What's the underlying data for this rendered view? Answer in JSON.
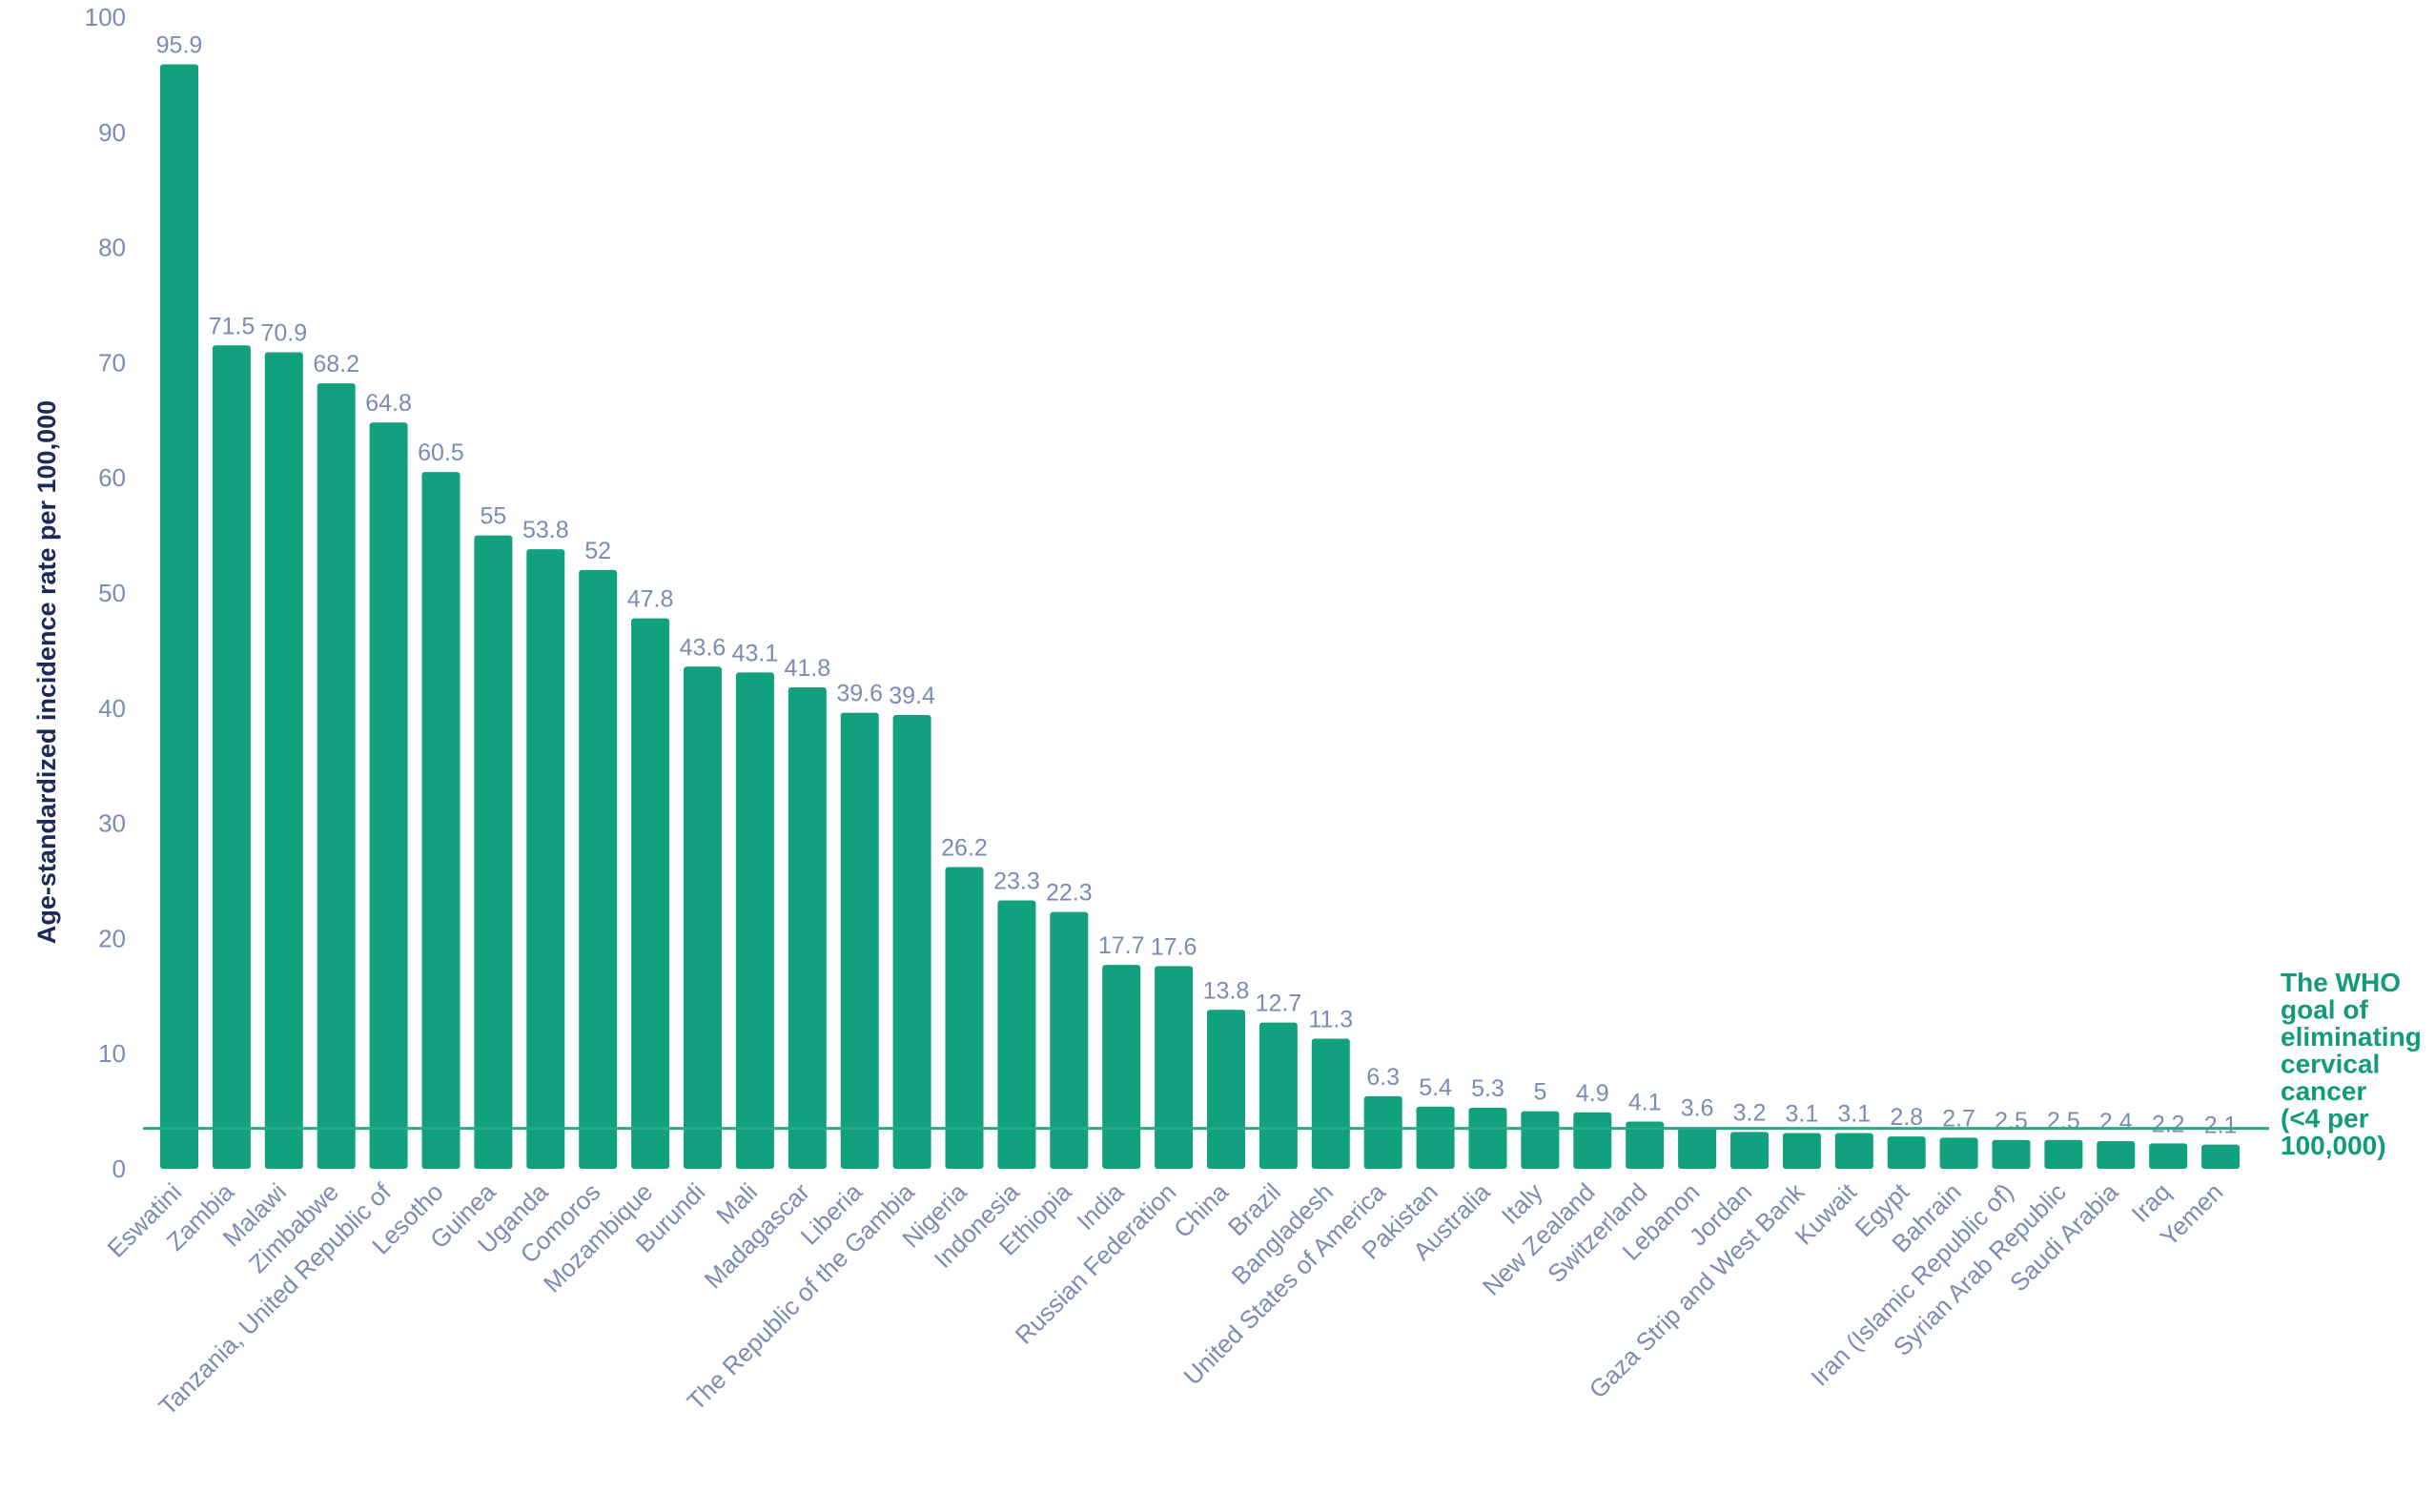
{
  "chart_data": {
    "type": "bar",
    "title": "",
    "xlabel": "",
    "ylabel": "Age-standardized incidence rate per 100,000",
    "ylim": [
      0,
      100
    ],
    "yticks": [
      0,
      10,
      20,
      30,
      40,
      50,
      60,
      70,
      80,
      90,
      100
    ],
    "grid": false,
    "bar_color": "#12a17e",
    "goal_line_color": "#2aaa8a",
    "categories": [
      "Eswatini",
      "Zambia",
      "Malawi",
      "Zimbabwe",
      "Tanzania, United Republic of",
      "Lesotho",
      "Guinea",
      "Uganda",
      "Comoros",
      "Mozambique",
      "Burundi",
      "Mali",
      "Madagascar",
      "Liberia",
      "The Republic of the Gambia",
      "Nigeria",
      "Indonesia",
      "Ethiopia",
      "India",
      "Russian Federation",
      "China",
      "Brazil",
      "Bangladesh",
      "United States of America",
      "Pakistan",
      "Australia",
      "Italy",
      "New Zealand",
      "Switzerland",
      "Lebanon",
      "Jordan",
      "Gaza Strip and West Bank",
      "Kuwait",
      "Egypt",
      "Bahrain",
      "Iran (Islamic Republic of)",
      "Syrian Arab Republic",
      "Saudi Arabia",
      "Iraq",
      "Yemen"
    ],
    "values": [
      95.9,
      71.5,
      70.9,
      68.2,
      64.8,
      60.5,
      55,
      53.8,
      52,
      47.8,
      43.6,
      43.1,
      41.8,
      39.6,
      39.4,
      26.2,
      23.3,
      22.3,
      17.7,
      17.6,
      13.8,
      12.7,
      11.3,
      6.3,
      5.4,
      5.3,
      5,
      4.9,
      4.1,
      3.6,
      3.2,
      3.1,
      3.1,
      2.8,
      2.7,
      2.5,
      2.5,
      2.4,
      2.2,
      2.1
    ],
    "reference_line": {
      "value": 4,
      "label_lines": [
        "The WHO",
        "goal of",
        "eliminating",
        "cervical",
        "cancer",
        "(<4 per",
        "100,000)"
      ]
    }
  }
}
